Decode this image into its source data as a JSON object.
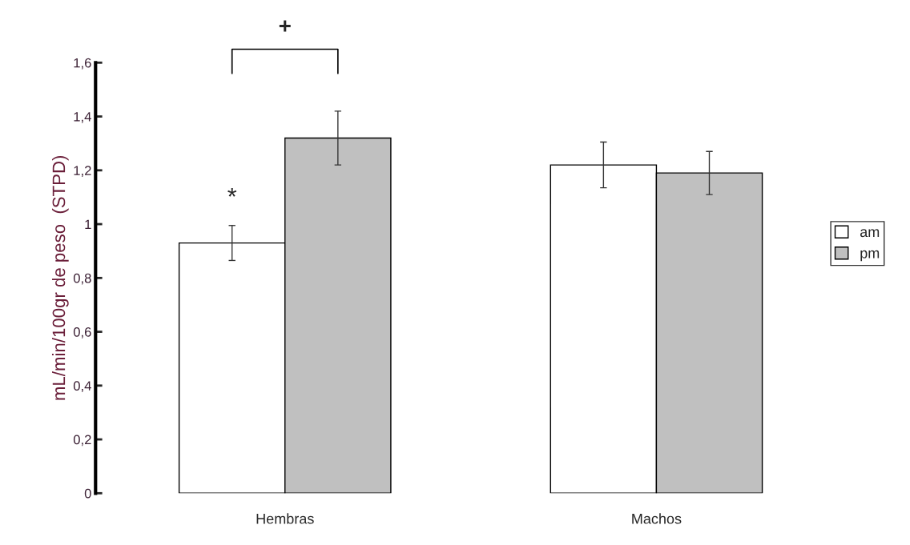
{
  "chart_data": {
    "type": "bar",
    "ylabel": "mL/min/100gr de peso  (STPD)",
    "categories": [
      "Hembras",
      "Machos"
    ],
    "series": [
      {
        "name": "am",
        "color": "#ffffff",
        "values": [
          0.93,
          1.22
        ],
        "errors": [
          0.065,
          0.085
        ]
      },
      {
        "name": "pm",
        "color": "#c0c0c0",
        "values": [
          1.32,
          1.19
        ],
        "errors": [
          0.1,
          0.08
        ]
      }
    ],
    "ylim": [
      0,
      1.6
    ],
    "yticks": [
      0,
      {
        "value": 0.2,
        "label": "0,2"
      },
      {
        "value": 0.4,
        "label": "0,4"
      },
      {
        "value": 0.6,
        "label": "0,6"
      },
      {
        "value": 0.8,
        "label": "0,8"
      },
      1,
      {
        "value": 1.2,
        "label": "1,2"
      },
      {
        "value": 1.4,
        "label": "1,4"
      },
      {
        "value": 1.6,
        "label": "1,6"
      }
    ],
    "annotations": [
      "*",
      "+"
    ],
    "grid": false,
    "legend": "right"
  }
}
